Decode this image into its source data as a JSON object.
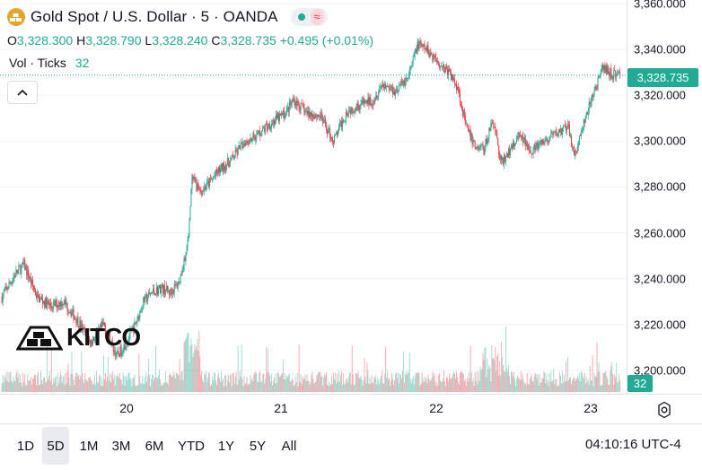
{
  "header": {
    "title": "Gold Spot / U.S. Dollar · 5 · OANDA",
    "wave_glyph": "≈"
  },
  "ohlc": {
    "o_label": "O",
    "o": "3,328.300",
    "h_label": "H",
    "h": "3,328.790",
    "l_label": "L",
    "l": "3,328.240",
    "c_label": "C",
    "c": "3,328.735",
    "change": "+0.495 (+0.01%)"
  },
  "volume": {
    "label": "Vol · Ticks",
    "value": "32"
  },
  "price_tag": "3,328.735",
  "vol_tag": "32",
  "watermark": "KITCO",
  "range_buttons": [
    "1D",
    "5D",
    "1M",
    "3M",
    "6M",
    "YTD",
    "1Y",
    "5Y",
    "All"
  ],
  "active_range": "5D",
  "clock": "04:10:16 UTC-4",
  "colors": {
    "up": "#22ab94",
    "down": "#f23645",
    "accent": "#22ab94"
  },
  "icons": {
    "symbol": "gold-bars-icon",
    "collapse": "chevron-up-icon",
    "settings": "gear-icon"
  },
  "chart_data": {
    "type": "candlestick",
    "y_ticks": [
      "3,200.000",
      "3,220.000",
      "3,240.000",
      "3,260.000",
      "3,280.000",
      "3,300.000",
      "3,320.000",
      "3,340.000",
      "3,360.000"
    ],
    "y_tick_values": [
      3200,
      3220,
      3240,
      3260,
      3280,
      3300,
      3320,
      3340,
      3360
    ],
    "x_ticks": [
      "20",
      "21",
      "22",
      "23"
    ],
    "ylim": [
      3192,
      3360
    ],
    "last_price": 3328.735,
    "price_path": [
      {
        "bar": 0,
        "price": 3232
      },
      {
        "bar": 15,
        "price": 3242
      },
      {
        "bar": 25,
        "price": 3246
      },
      {
        "bar": 40,
        "price": 3232
      },
      {
        "bar": 55,
        "price": 3228
      },
      {
        "bar": 70,
        "price": 3230
      },
      {
        "bar": 85,
        "price": 3222
      },
      {
        "bar": 100,
        "price": 3212
      },
      {
        "bar": 115,
        "price": 3220
      },
      {
        "bar": 130,
        "price": 3206
      },
      {
        "bar": 140,
        "price": 3212
      },
      {
        "bar": 150,
        "price": 3219
      },
      {
        "bar": 160,
        "price": 3230
      },
      {
        "bar": 170,
        "price": 3234
      },
      {
        "bar": 180,
        "price": 3236
      },
      {
        "bar": 190,
        "price": 3234
      },
      {
        "bar": 200,
        "price": 3238
      },
      {
        "bar": 210,
        "price": 3255
      },
      {
        "bar": 215,
        "price": 3283
      },
      {
        "bar": 225,
        "price": 3278
      },
      {
        "bar": 235,
        "price": 3282
      },
      {
        "bar": 245,
        "price": 3287
      },
      {
        "bar": 260,
        "price": 3292
      },
      {
        "bar": 275,
        "price": 3300
      },
      {
        "bar": 290,
        "price": 3303
      },
      {
        "bar": 305,
        "price": 3308
      },
      {
        "bar": 320,
        "price": 3312
      },
      {
        "bar": 330,
        "price": 3318
      },
      {
        "bar": 345,
        "price": 3312
      },
      {
        "bar": 360,
        "price": 3311
      },
      {
        "bar": 375,
        "price": 3300
      },
      {
        "bar": 390,
        "price": 3313
      },
      {
        "bar": 405,
        "price": 3316
      },
      {
        "bar": 420,
        "price": 3318
      },
      {
        "bar": 430,
        "price": 3325
      },
      {
        "bar": 445,
        "price": 3322
      },
      {
        "bar": 460,
        "price": 3328
      },
      {
        "bar": 470,
        "price": 3342
      },
      {
        "bar": 480,
        "price": 3340
      },
      {
        "bar": 490,
        "price": 3336
      },
      {
        "bar": 505,
        "price": 3330
      },
      {
        "bar": 515,
        "price": 3324
      },
      {
        "bar": 525,
        "price": 3306
      },
      {
        "bar": 535,
        "price": 3298
      },
      {
        "bar": 545,
        "price": 3296
      },
      {
        "bar": 555,
        "price": 3310
      },
      {
        "bar": 565,
        "price": 3290
      },
      {
        "bar": 575,
        "price": 3296
      },
      {
        "bar": 585,
        "price": 3302
      },
      {
        "bar": 600,
        "price": 3296
      },
      {
        "bar": 615,
        "price": 3300
      },
      {
        "bar": 630,
        "price": 3304
      },
      {
        "bar": 640,
        "price": 3306
      },
      {
        "bar": 648,
        "price": 3294
      },
      {
        "bar": 660,
        "price": 3310
      },
      {
        "bar": 670,
        "price": 3322
      },
      {
        "bar": 680,
        "price": 3332
      },
      {
        "bar": 690,
        "price": 3329
      }
    ],
    "volume_ticks": {
      "min": 5,
      "typical": 30,
      "max": 160
    }
  }
}
